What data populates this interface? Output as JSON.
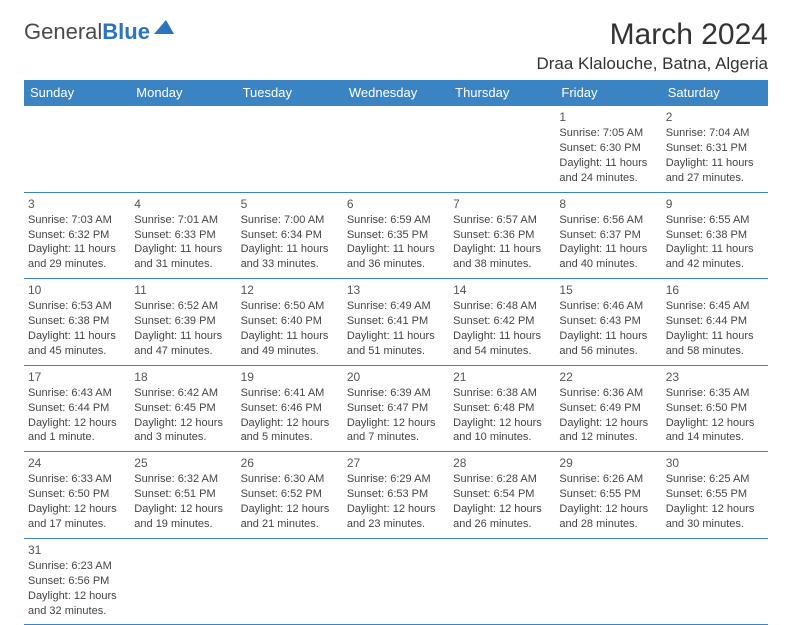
{
  "brand": {
    "part1": "General",
    "part2": "Blue"
  },
  "title": "March 2024",
  "location": "Draa Klalouche, Batna, Algeria",
  "colors": {
    "header_bg": "#3b84c4",
    "header_text": "#ffffff",
    "border": "#3b84c4",
    "text": "#444444",
    "brand_accent": "#2a75bb"
  },
  "typography": {
    "title_fontsize": 30,
    "location_fontsize": 17,
    "dayheader_fontsize": 13,
    "cell_fontsize": 11
  },
  "day_headers": [
    "Sunday",
    "Monday",
    "Tuesday",
    "Wednesday",
    "Thursday",
    "Friday",
    "Saturday"
  ],
  "weeks": [
    [
      null,
      null,
      null,
      null,
      null,
      {
        "n": "1",
        "sunrise": "Sunrise: 7:05 AM",
        "sunset": "Sunset: 6:30 PM",
        "daylight": "Daylight: 11 hours and 24 minutes."
      },
      {
        "n": "2",
        "sunrise": "Sunrise: 7:04 AM",
        "sunset": "Sunset: 6:31 PM",
        "daylight": "Daylight: 11 hours and 27 minutes."
      }
    ],
    [
      {
        "n": "3",
        "sunrise": "Sunrise: 7:03 AM",
        "sunset": "Sunset: 6:32 PM",
        "daylight": "Daylight: 11 hours and 29 minutes."
      },
      {
        "n": "4",
        "sunrise": "Sunrise: 7:01 AM",
        "sunset": "Sunset: 6:33 PM",
        "daylight": "Daylight: 11 hours and 31 minutes."
      },
      {
        "n": "5",
        "sunrise": "Sunrise: 7:00 AM",
        "sunset": "Sunset: 6:34 PM",
        "daylight": "Daylight: 11 hours and 33 minutes."
      },
      {
        "n": "6",
        "sunrise": "Sunrise: 6:59 AM",
        "sunset": "Sunset: 6:35 PM",
        "daylight": "Daylight: 11 hours and 36 minutes."
      },
      {
        "n": "7",
        "sunrise": "Sunrise: 6:57 AM",
        "sunset": "Sunset: 6:36 PM",
        "daylight": "Daylight: 11 hours and 38 minutes."
      },
      {
        "n": "8",
        "sunrise": "Sunrise: 6:56 AM",
        "sunset": "Sunset: 6:37 PM",
        "daylight": "Daylight: 11 hours and 40 minutes."
      },
      {
        "n": "9",
        "sunrise": "Sunrise: 6:55 AM",
        "sunset": "Sunset: 6:38 PM",
        "daylight": "Daylight: 11 hours and 42 minutes."
      }
    ],
    [
      {
        "n": "10",
        "sunrise": "Sunrise: 6:53 AM",
        "sunset": "Sunset: 6:38 PM",
        "daylight": "Daylight: 11 hours and 45 minutes."
      },
      {
        "n": "11",
        "sunrise": "Sunrise: 6:52 AM",
        "sunset": "Sunset: 6:39 PM",
        "daylight": "Daylight: 11 hours and 47 minutes."
      },
      {
        "n": "12",
        "sunrise": "Sunrise: 6:50 AM",
        "sunset": "Sunset: 6:40 PM",
        "daylight": "Daylight: 11 hours and 49 minutes."
      },
      {
        "n": "13",
        "sunrise": "Sunrise: 6:49 AM",
        "sunset": "Sunset: 6:41 PM",
        "daylight": "Daylight: 11 hours and 51 minutes."
      },
      {
        "n": "14",
        "sunrise": "Sunrise: 6:48 AM",
        "sunset": "Sunset: 6:42 PM",
        "daylight": "Daylight: 11 hours and 54 minutes."
      },
      {
        "n": "15",
        "sunrise": "Sunrise: 6:46 AM",
        "sunset": "Sunset: 6:43 PM",
        "daylight": "Daylight: 11 hours and 56 minutes."
      },
      {
        "n": "16",
        "sunrise": "Sunrise: 6:45 AM",
        "sunset": "Sunset: 6:44 PM",
        "daylight": "Daylight: 11 hours and 58 minutes."
      }
    ],
    [
      {
        "n": "17",
        "sunrise": "Sunrise: 6:43 AM",
        "sunset": "Sunset: 6:44 PM",
        "daylight": "Daylight: 12 hours and 1 minute."
      },
      {
        "n": "18",
        "sunrise": "Sunrise: 6:42 AM",
        "sunset": "Sunset: 6:45 PM",
        "daylight": "Daylight: 12 hours and 3 minutes."
      },
      {
        "n": "19",
        "sunrise": "Sunrise: 6:41 AM",
        "sunset": "Sunset: 6:46 PM",
        "daylight": "Daylight: 12 hours and 5 minutes."
      },
      {
        "n": "20",
        "sunrise": "Sunrise: 6:39 AM",
        "sunset": "Sunset: 6:47 PM",
        "daylight": "Daylight: 12 hours and 7 minutes."
      },
      {
        "n": "21",
        "sunrise": "Sunrise: 6:38 AM",
        "sunset": "Sunset: 6:48 PM",
        "daylight": "Daylight: 12 hours and 10 minutes."
      },
      {
        "n": "22",
        "sunrise": "Sunrise: 6:36 AM",
        "sunset": "Sunset: 6:49 PM",
        "daylight": "Daylight: 12 hours and 12 minutes."
      },
      {
        "n": "23",
        "sunrise": "Sunrise: 6:35 AM",
        "sunset": "Sunset: 6:50 PM",
        "daylight": "Daylight: 12 hours and 14 minutes."
      }
    ],
    [
      {
        "n": "24",
        "sunrise": "Sunrise: 6:33 AM",
        "sunset": "Sunset: 6:50 PM",
        "daylight": "Daylight: 12 hours and 17 minutes."
      },
      {
        "n": "25",
        "sunrise": "Sunrise: 6:32 AM",
        "sunset": "Sunset: 6:51 PM",
        "daylight": "Daylight: 12 hours and 19 minutes."
      },
      {
        "n": "26",
        "sunrise": "Sunrise: 6:30 AM",
        "sunset": "Sunset: 6:52 PM",
        "daylight": "Daylight: 12 hours and 21 minutes."
      },
      {
        "n": "27",
        "sunrise": "Sunrise: 6:29 AM",
        "sunset": "Sunset: 6:53 PM",
        "daylight": "Daylight: 12 hours and 23 minutes."
      },
      {
        "n": "28",
        "sunrise": "Sunrise: 6:28 AM",
        "sunset": "Sunset: 6:54 PM",
        "daylight": "Daylight: 12 hours and 26 minutes."
      },
      {
        "n": "29",
        "sunrise": "Sunrise: 6:26 AM",
        "sunset": "Sunset: 6:55 PM",
        "daylight": "Daylight: 12 hours and 28 minutes."
      },
      {
        "n": "30",
        "sunrise": "Sunrise: 6:25 AM",
        "sunset": "Sunset: 6:55 PM",
        "daylight": "Daylight: 12 hours and 30 minutes."
      }
    ],
    [
      {
        "n": "31",
        "sunrise": "Sunrise: 6:23 AM",
        "sunset": "Sunset: 6:56 PM",
        "daylight": "Daylight: 12 hours and 32 minutes."
      },
      null,
      null,
      null,
      null,
      null,
      null
    ]
  ]
}
